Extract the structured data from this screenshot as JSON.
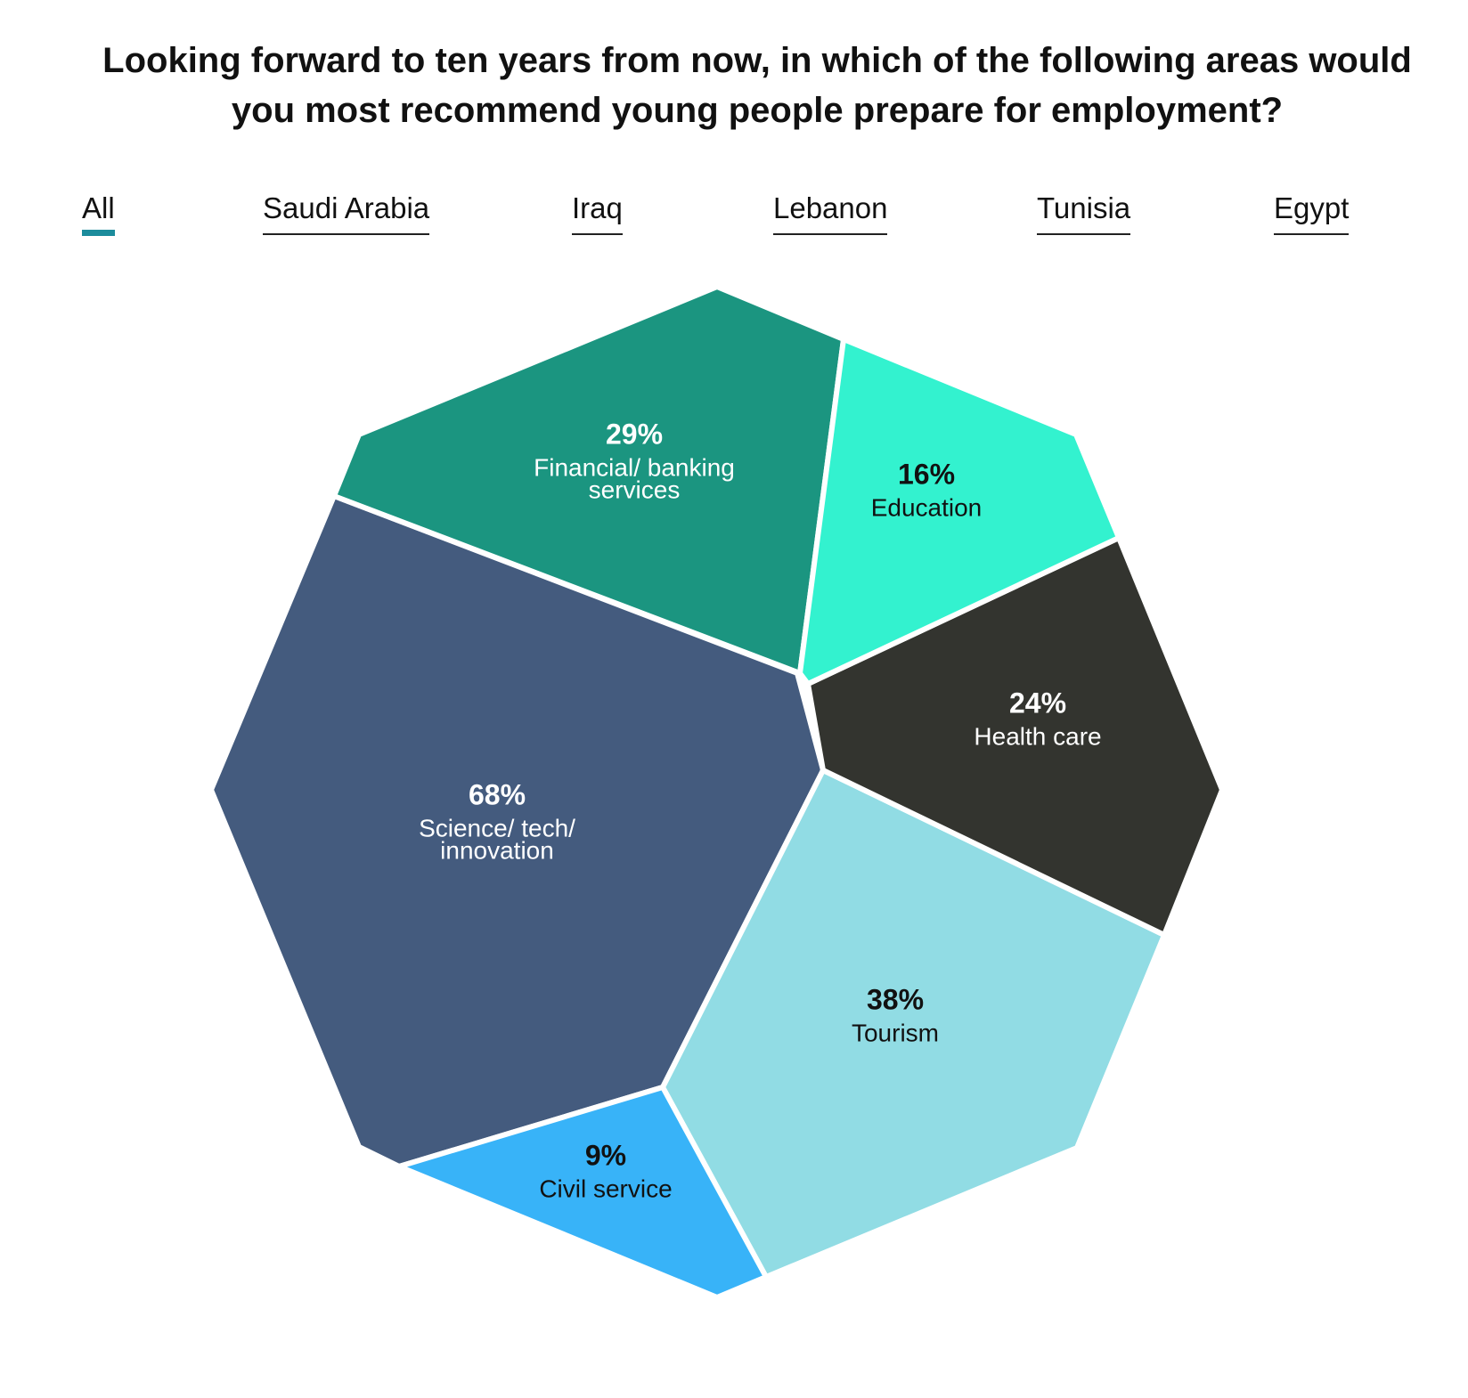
{
  "chart_data": {
    "type": "voronoi-treemap",
    "title": "Looking forward to ten years from now, in which of the following areas would you most recommend young people prepare for employment?",
    "unit": "%",
    "series": [
      {
        "name": "Science/ tech/ innovation",
        "value": 68,
        "label_value": "68%",
        "label_lines": [
          "Science/ tech/",
          "innovation"
        ],
        "color": "#445b7e",
        "text_color": "#ffffff"
      },
      {
        "name": "Tourism",
        "value": 38,
        "label_value": "38%",
        "label_lines": [
          "Tourism"
        ],
        "color": "#91dce4",
        "text_color": "#111111"
      },
      {
        "name": "Financial/ banking services",
        "value": 29,
        "label_value": "29%",
        "label_lines": [
          "Financial/ banking",
          "services"
        ],
        "color": "#1b9580",
        "text_color": "#ffffff"
      },
      {
        "name": "Health care",
        "value": 24,
        "label_value": "24%",
        "label_lines": [
          "Health care"
        ],
        "color": "#33342f",
        "text_color": "#ffffff"
      },
      {
        "name": "Education",
        "value": 16,
        "label_value": "16%",
        "label_lines": [
          "Education"
        ],
        "color": "#33f2cf",
        "text_color": "#111111"
      },
      {
        "name": "Civil service",
        "value": 9,
        "label_value": "9%",
        "label_lines": [
          "Civil service"
        ],
        "color": "#38b3f8",
        "text_color": "#111111"
      }
    ]
  },
  "filters": {
    "tabs": [
      {
        "label": "All",
        "active": true
      },
      {
        "label": "Saudi Arabia",
        "active": false
      },
      {
        "label": "Iraq",
        "active": false
      },
      {
        "label": "Lebanon",
        "active": false
      },
      {
        "label": "Tunisia",
        "active": false
      },
      {
        "label": "Egypt",
        "active": false
      }
    ]
  }
}
